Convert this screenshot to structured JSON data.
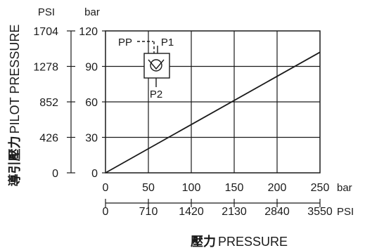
{
  "chart_data": {
    "type": "line",
    "xlabel_cjk": "壓力",
    "xlabel": "PRESSURE",
    "ylabel_cjk": "導引壓力",
    "ylabel": "PILOT PRESSURE",
    "x_primary": {
      "unit": "bar",
      "ticks": [
        "0",
        "50",
        "100",
        "150",
        "200",
        "250"
      ],
      "range": [
        0,
        250
      ]
    },
    "x_secondary": {
      "unit": "PSI",
      "ticks": [
        "0",
        "710",
        "1420",
        "2130",
        "2840",
        "3550"
      ]
    },
    "y_primary": {
      "unit": "bar",
      "ticks": [
        "0",
        "30",
        "60",
        "90",
        "120"
      ],
      "range": [
        0,
        120
      ]
    },
    "y_secondary": {
      "unit": "PSI",
      "ticks": [
        "0",
        "426",
        "852",
        "1278",
        "1704"
      ]
    },
    "grid": true,
    "series": [
      {
        "x": [
          0,
          250
        ],
        "y": [
          0,
          102
        ]
      }
    ],
    "symbol": {
      "port_pilot": "PP",
      "port_1": "P1",
      "port_2": "P2"
    },
    "colors": {
      "line": "#1a1a1a",
      "grid": "#1a1a1a"
    }
  }
}
